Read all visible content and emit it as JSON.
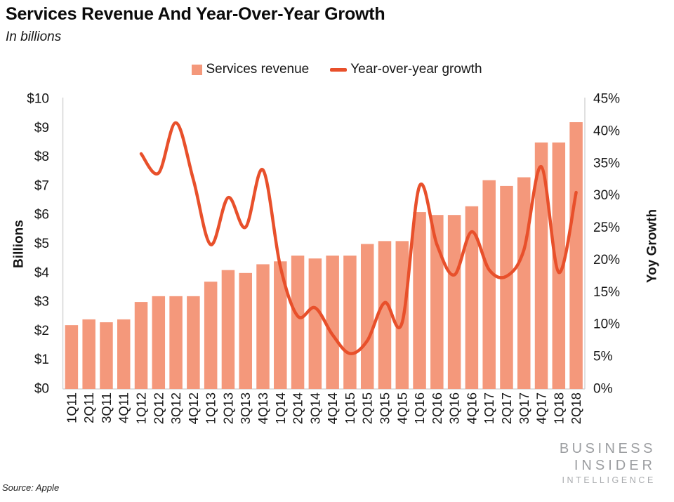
{
  "header": {
    "title": "Services Revenue And Year-Over-Year Growth",
    "subtitle": "In billions"
  },
  "legend": [
    {
      "label": "Services revenue",
      "swatch": "square"
    },
    {
      "label": "Year-over-year growth",
      "swatch": "line"
    }
  ],
  "source_note": "Source: Apple",
  "logo": {
    "line1": "BUSINESS",
    "line2": "INSIDER",
    "line3": "INTELLIGENCE"
  },
  "colors": {
    "bar": "#f4987b",
    "line": "#e8502b",
    "axis": "#d6d6d6",
    "text": "#161616",
    "logo_gray": "#9c9ea1"
  },
  "chart_data": {
    "type": "bar",
    "subtype": "bar+line combo",
    "title": "Services Revenue And Year-Over-Year Growth",
    "subtitle_note": "In billions",
    "grid": false,
    "legend_position": "top",
    "categories": [
      "1Q11",
      "2Q11",
      "3Q11",
      "4Q11",
      "1Q12",
      "2Q12",
      "3Q12",
      "4Q12",
      "1Q13",
      "2Q13",
      "3Q13",
      "4Q13",
      "1Q14",
      "2Q14",
      "3Q14",
      "4Q14",
      "1Q15",
      "2Q15",
      "3Q15",
      "4Q15",
      "1Q16",
      "2Q16",
      "3Q16",
      "4Q16",
      "1Q17",
      "2Q17",
      "3Q17",
      "4Q17",
      "1Q18",
      "2Q18"
    ],
    "series": [
      {
        "name": "Services revenue",
        "type": "bar",
        "axis": "left",
        "unit": "USD billions",
        "values": [
          2.2,
          2.4,
          2.3,
          2.4,
          3.0,
          3.2,
          3.2,
          3.2,
          3.7,
          4.1,
          4.0,
          4.3,
          4.4,
          4.6,
          4.5,
          4.6,
          4.6,
          5.0,
          5.1,
          5.1,
          6.1,
          6.0,
          6.0,
          6.3,
          7.2,
          7.0,
          7.3,
          8.5,
          8.5,
          9.2
        ]
      },
      {
        "name": "Year-over-year growth",
        "type": "line",
        "axis": "right",
        "unit": "percent",
        "values": [
          null,
          null,
          null,
          null,
          36.5,
          33.5,
          41.3,
          32.5,
          22.4,
          29.7,
          25.1,
          34.0,
          19.0,
          11.3,
          12.6,
          8.4,
          5.5,
          7.5,
          13.4,
          10.3,
          31.5,
          22.4,
          17.7,
          24.4,
          18.5,
          17.5,
          21.6,
          34.5,
          18.1,
          30.5
        ]
      }
    ],
    "left_axis": {
      "label": "Billions",
      "min": 0,
      "max": 10,
      "tick_values": [
        0,
        1,
        2,
        3,
        4,
        5,
        6,
        7,
        8,
        9,
        10
      ],
      "tick_labels": [
        "$0",
        "$1",
        "$2",
        "$3",
        "$4",
        "$5",
        "$6",
        "$7",
        "$8",
        "$9",
        "$10"
      ]
    },
    "right_axis": {
      "label": "Yoy Growth",
      "min": 0,
      "max": 45,
      "tick_values": [
        0,
        5,
        10,
        15,
        20,
        25,
        30,
        35,
        40,
        45
      ],
      "tick_labels": [
        "0%",
        "5%",
        "10%",
        "15%",
        "20%",
        "25%",
        "30%",
        "35%",
        "40%",
        "45%"
      ]
    }
  }
}
